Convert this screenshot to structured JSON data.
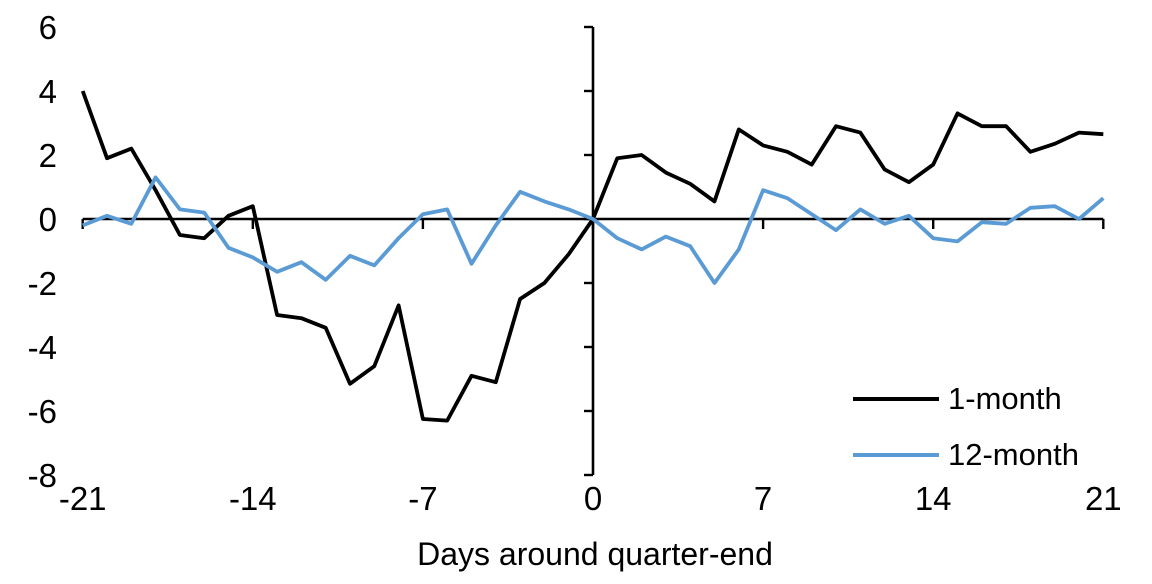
{
  "chart_data": {
    "type": "line",
    "title": "",
    "xlabel": "Days around quarter-end",
    "ylabel": "",
    "xlim": [
      -21,
      21
    ],
    "ylim": [
      -8,
      6
    ],
    "x_ticks": [
      -21,
      -14,
      -7,
      0,
      7,
      14,
      21
    ],
    "y_ticks": [
      6,
      4,
      2,
      0,
      -2,
      -4,
      -6,
      -8
    ],
    "grid": "off",
    "legend_position": "inside-right",
    "axis_color": "#000000",
    "x": [
      -21,
      -20,
      -19,
      -18,
      -17,
      -16,
      -15,
      -14,
      -13,
      -12,
      -11,
      -10,
      -9,
      -8,
      -7,
      -6,
      -5,
      -4,
      -3,
      -2,
      -1,
      0,
      1,
      2,
      3,
      4,
      5,
      6,
      7,
      8,
      9,
      10,
      11,
      12,
      13,
      14,
      15,
      16,
      17,
      18,
      19,
      20,
      21
    ],
    "series": [
      {
        "name": "1-month",
        "color": "#000000",
        "values": [
          4.0,
          1.9,
          2.2,
          0.9,
          -0.5,
          -0.6,
          0.1,
          0.4,
          -3.0,
          -3.1,
          -3.4,
          -5.15,
          -4.6,
          -2.7,
          -6.25,
          -6.3,
          -4.9,
          -5.1,
          -2.5,
          -2.0,
          -1.1,
          0.0,
          1.9,
          2.0,
          1.45,
          1.1,
          0.55,
          2.8,
          2.3,
          2.1,
          1.7,
          2.9,
          2.7,
          1.55,
          1.15,
          1.7,
          3.3,
          2.9,
          2.9,
          2.1,
          2.35,
          2.7,
          2.65
        ]
      },
      {
        "name": "12-month",
        "color": "#5B9BD5",
        "values": [
          -0.2,
          0.1,
          -0.15,
          1.3,
          0.3,
          0.2,
          -0.9,
          -1.2,
          -1.65,
          -1.35,
          -1.9,
          -1.15,
          -1.45,
          -0.6,
          0.15,
          0.3,
          -1.4,
          -0.2,
          0.85,
          0.55,
          0.3,
          0.0,
          -0.6,
          -0.95,
          -0.55,
          -0.85,
          -2.0,
          -0.95,
          0.9,
          0.65,
          0.15,
          -0.35,
          0.3,
          -0.15,
          0.1,
          -0.6,
          -0.7,
          -0.1,
          -0.15,
          0.35,
          0.4,
          0.0,
          0.65
        ]
      }
    ]
  }
}
